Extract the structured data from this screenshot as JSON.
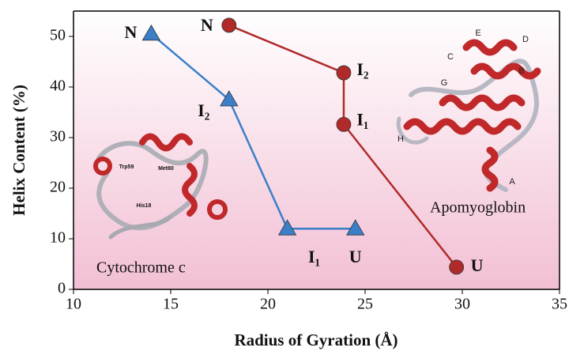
{
  "chart_data": {
    "type": "line",
    "x_label": "Radius of Gyration (Å)",
    "y_label": "Helix Content (%)",
    "xlim": [
      10,
      35
    ],
    "xticks": [
      10,
      15,
      20,
      25,
      30,
      35
    ],
    "ylim": [
      0,
      55
    ],
    "yticks": [
      0,
      10,
      20,
      30,
      40,
      50
    ],
    "series": [
      {
        "name": "Cytochrome c",
        "color": "#3a7fc8",
        "marker": "triangle",
        "x": [
          14,
          18,
          21,
          24.5
        ],
        "values": [
          50.5,
          37.5,
          12,
          12
        ],
        "point_labels": [
          "N",
          "I₂",
          "I₁",
          "U"
        ]
      },
      {
        "name": "Apomyoglobin",
        "color": "#b02a2a",
        "marker": "circle",
        "x": [
          18,
          23.9,
          23.9,
          29.7
        ],
        "values": [
          52.2,
          42.8,
          32.6,
          4.4
        ],
        "point_labels": [
          "N",
          "I₂",
          "I₁",
          "U"
        ]
      }
    ],
    "annotations": {
      "apomyoglobin_helices": [
        "E",
        "D",
        "C",
        "B",
        "G",
        "H",
        "A"
      ],
      "cytochrome_residues": [
        "Trp59",
        "Met80",
        "His18"
      ]
    }
  }
}
